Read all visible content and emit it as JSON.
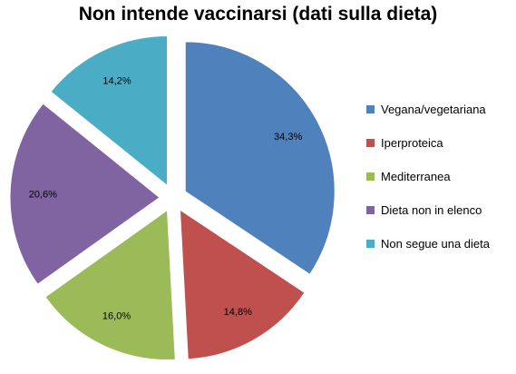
{
  "chart_data": {
    "type": "pie",
    "title": "Non intende vaccinarsi (dati sulla dieta)",
    "exploded": true,
    "legend_position": "right",
    "slices": [
      {
        "name": "Vegana/vegetariana",
        "value": 34.3,
        "label": "34,3%",
        "color": "#4F81BD"
      },
      {
        "name": "Iperproteica",
        "value": 14.8,
        "label": "14,8%",
        "color": "#C0504D"
      },
      {
        "name": "Mediterranea",
        "value": 16.0,
        "label": "16,0%",
        "color": "#9BBB59"
      },
      {
        "name": "Dieta non in elenco",
        "value": 20.6,
        "label": "20,6%",
        "color": "#8064A2"
      },
      {
        "name": "Non segue una dieta",
        "value": 14.2,
        "label": "14,2%",
        "color": "#4BACC6"
      }
    ]
  }
}
